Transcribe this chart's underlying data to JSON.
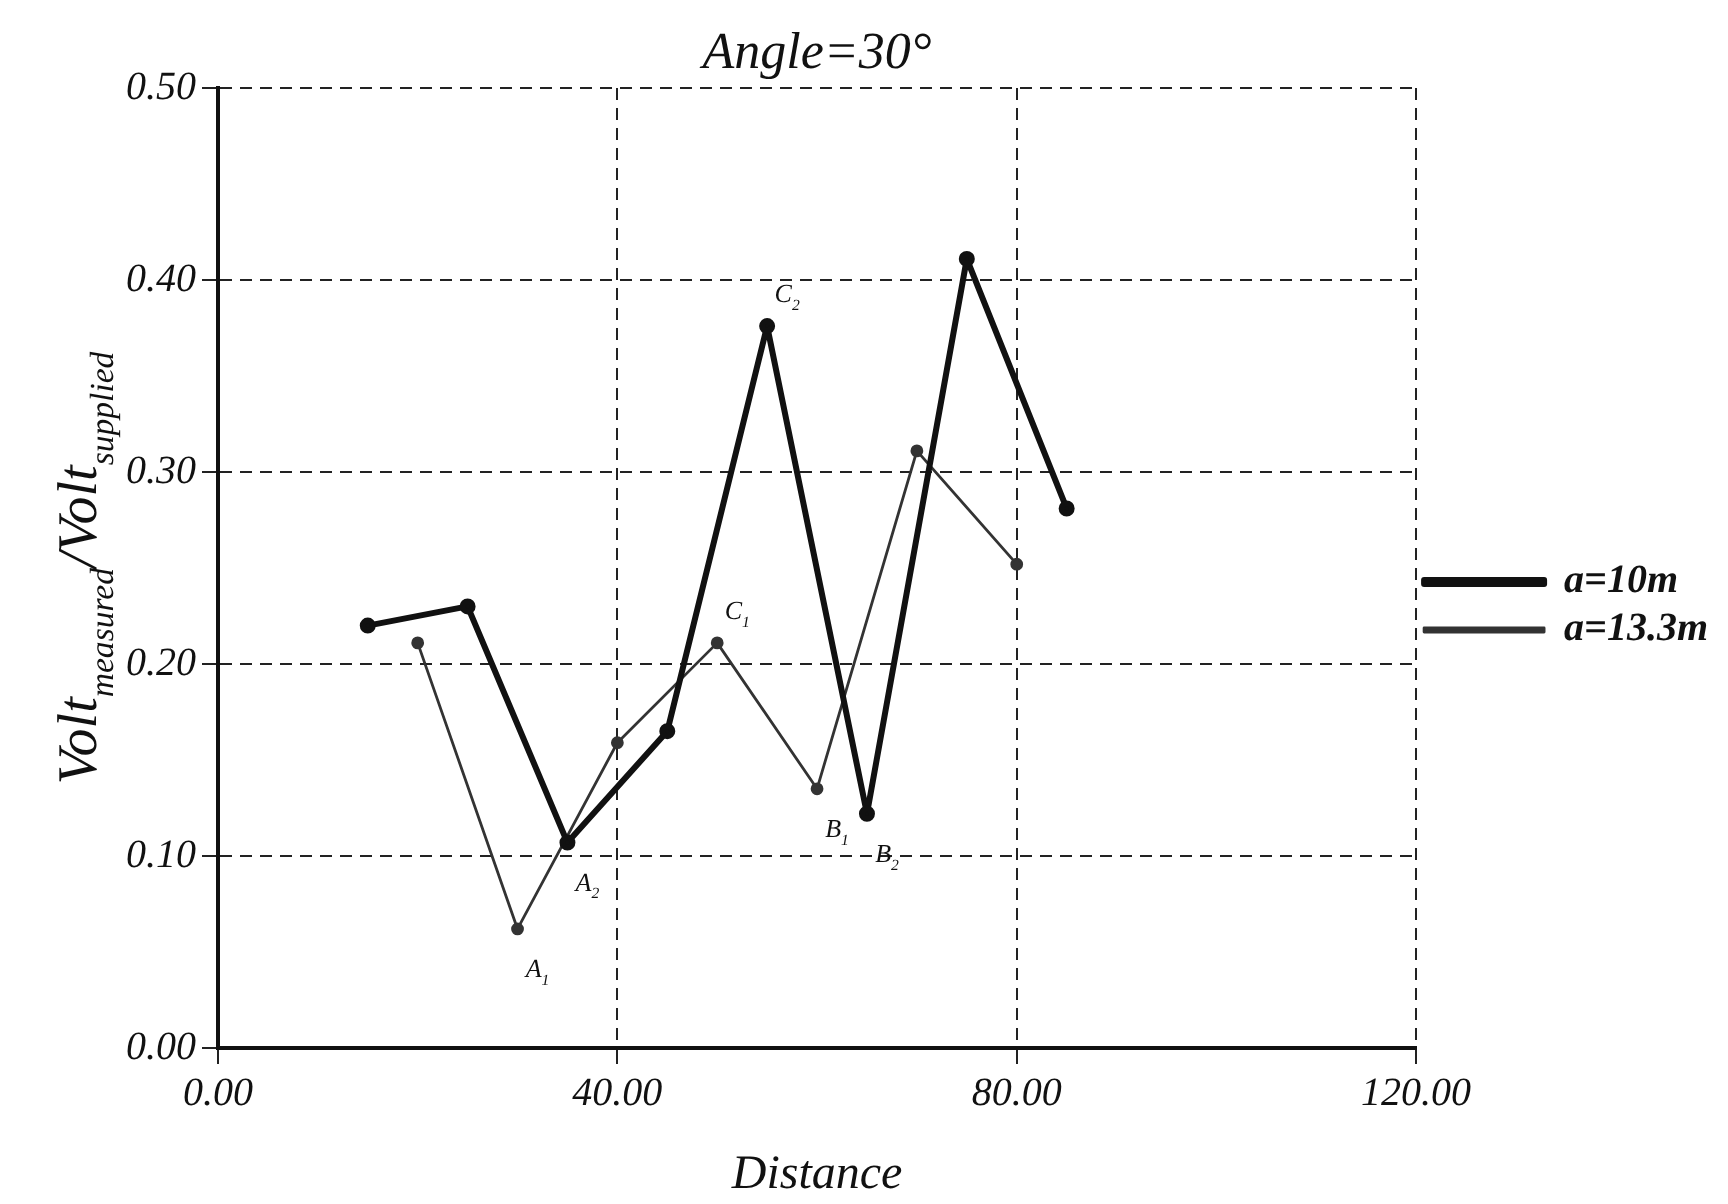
{
  "chart_data": {
    "type": "line",
    "title": "Angle=30°",
    "xlabel": "Distance",
    "ylabel": "Volt$_{measured}$/Volt$_{supplied}$",
    "xlim": [
      0,
      120
    ],
    "xticks": [
      {
        "value": 0,
        "label": "0.00"
      },
      {
        "value": 40,
        "label": "40.00"
      },
      {
        "value": 80,
        "label": "80.00"
      },
      {
        "value": 120,
        "label": "120.00"
      }
    ],
    "ylim": [
      0,
      0.5
    ],
    "yticks": [
      {
        "value": 0,
        "label": "0.00"
      },
      {
        "value": 0.1,
        "label": "0.10"
      },
      {
        "value": 0.2,
        "label": "0.20"
      },
      {
        "value": 0.3,
        "label": "0.30"
      },
      {
        "value": 0.4,
        "label": "0.40"
      },
      {
        "value": 0.5,
        "label": "0.50"
      }
    ],
    "grid": true,
    "legend": "right",
    "marker": "circle",
    "line_style": "solid",
    "series": [
      {
        "name": "a=10m",
        "color": "#111111",
        "x": [
          15,
          25,
          35,
          45,
          55,
          65,
          75,
          85
        ],
        "values": [
          0.22,
          0.23,
          0.107,
          0.165,
          0.376,
          0.122,
          0.411,
          0.281
        ]
      },
      {
        "name": "a=13.3m",
        "color": "#333333",
        "x": [
          20,
          30,
          40,
          50,
          60,
          70,
          80
        ],
        "values": [
          0.211,
          0.062,
          0.159,
          0.211,
          0.135,
          0.311,
          0.252
        ]
      }
    ],
    "annotations": [
      {
        "text": "A$_{1}$",
        "x": 30,
        "y": 0.062
      },
      {
        "text": "A$_{2}$",
        "x": 35,
        "y": 0.107
      },
      {
        "text": "B$_{1}$",
        "x": 60,
        "y": 0.135
      },
      {
        "text": "B$_{2}$",
        "x": 65,
        "y": 0.122
      },
      {
        "text": "C$_{1}$",
        "x": 50,
        "y": 0.211
      },
      {
        "text": "C$_{2}$",
        "x": 55,
        "y": 0.376
      }
    ]
  }
}
